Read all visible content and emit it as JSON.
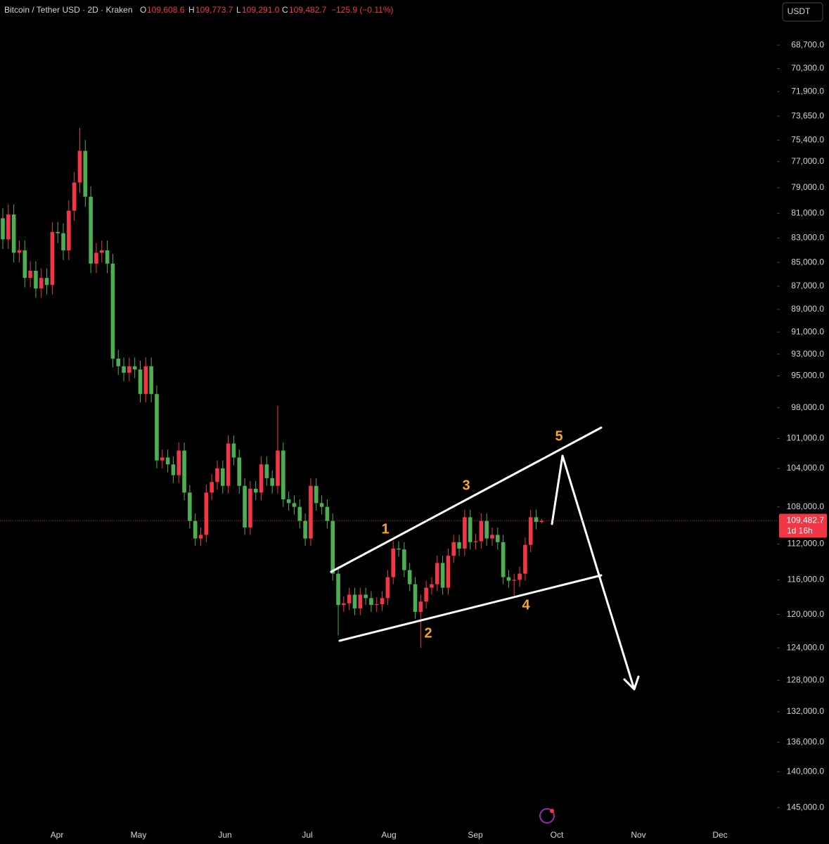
{
  "chart_data": {
    "type": "candlestick",
    "header": {
      "symbol": "Bitcoin / Tether USD · 2D · Kraken",
      "o_label": "O",
      "o": "109,608.6",
      "h_label": "H",
      "h": "109,773.7",
      "l_label": "L",
      "l": "109,291.0",
      "c_label": "C",
      "c": "109,482.7",
      "change": "−125.9 (−0.11%)"
    },
    "currency": "USDT",
    "log_scale": true,
    "inverted": true,
    "up_color": "#4caf50",
    "down_color": "#f23645",
    "ylim": [
      65730,
      147700
    ],
    "yticks": [
      {
        "value": 68700,
        "label": "68,700.0"
      },
      {
        "value": 70300,
        "label": "70,300.0"
      },
      {
        "value": 71900,
        "label": "71,900.0"
      },
      {
        "value": 73650,
        "label": "73,650.0"
      },
      {
        "value": 75400,
        "label": "75,400.0"
      },
      {
        "value": 77000,
        "label": "77,000.0"
      },
      {
        "value": 79000,
        "label": "79,000.0"
      },
      {
        "value": 81000,
        "label": "81,000.0"
      },
      {
        "value": 83000,
        "label": "83,000.0"
      },
      {
        "value": 85000,
        "label": "85,000.0"
      },
      {
        "value": 87000,
        "label": "87,000.0"
      },
      {
        "value": 89000,
        "label": "89,000.0"
      },
      {
        "value": 91000,
        "label": "91,000.0"
      },
      {
        "value": 93000,
        "label": "93,000.0"
      },
      {
        "value": 95000,
        "label": "95,000.0"
      },
      {
        "value": 98000,
        "label": "98,000.0"
      },
      {
        "value": 101000,
        "label": "101,000.0"
      },
      {
        "value": 104000,
        "label": "104,000.0"
      },
      {
        "value": 108000,
        "label": "108,000.0"
      },
      {
        "value": 112000,
        "label": "112,000.0"
      },
      {
        "value": 116000,
        "label": "116,000.0"
      },
      {
        "value": 120000,
        "label": "120,000.0"
      },
      {
        "value": 124000,
        "label": "124,000.0"
      },
      {
        "value": 128000,
        "label": "128,000.0"
      },
      {
        "value": 132000,
        "label": "132,000.0"
      },
      {
        "value": 136000,
        "label": "136,000.0"
      },
      {
        "value": 140000,
        "label": "140,000.0"
      },
      {
        "value": 145000,
        "label": "145,000.0"
      }
    ],
    "months": [
      "Apr",
      "May",
      "Jun",
      "Jul",
      "Aug",
      "Sep",
      "Oct",
      "Nov",
      "Dec"
    ],
    "price_tag": {
      "value": 109482.7,
      "label": "109,482.7",
      "countdown": "1d 16h"
    },
    "waves": [
      "1",
      "2",
      "3",
      "4",
      "5"
    ],
    "open": [
      81400,
      83100,
      81100,
      84200,
      84000,
      86300,
      85700,
      87200,
      86300,
      86900,
      82500,
      82600,
      84000,
      80800,
      78600,
      76200,
      79700,
      85100,
      84200,
      84000,
      85100,
      93400,
      94100,
      94700,
      94100,
      94400,
      96700,
      94100,
      96700,
      103200,
      102900,
      103600,
      104700,
      102200,
      106500,
      109500,
      111400,
      111000,
      106500,
      105400,
      104000,
      105800,
      101500,
      102900,
      105800,
      110200,
      106100,
      106500,
      103600,
      105000,
      105800,
      102200,
      107200,
      107600,
      108000,
      109500,
      111400,
      105800,
      107600,
      108000,
      109500,
      115300,
      118900,
      118700,
      117700,
      119300,
      117700,
      118100,
      118900,
      118800,
      118100,
      115700,
      112500,
      112600,
      114900,
      116500,
      119700,
      118500,
      116900,
      116500,
      114100,
      116900,
      113300,
      111800,
      112500,
      109100,
      111800,
      111700,
      109500,
      111400,
      111000,
      111800,
      115700,
      116100,
      116000,
      115300,
      112100,
      109100,
      109608.6
    ],
    "high": [
      83900,
      83900,
      85000,
      85000,
      87100,
      87100,
      88000,
      88000,
      87700,
      87700,
      83400,
      84800,
      84800,
      81600,
      79400,
      80500,
      85900,
      85900,
      85000,
      85900,
      94200,
      94900,
      95500,
      95500,
      95200,
      97500,
      97500,
      97500,
      104000,
      104000,
      104400,
      105500,
      105500,
      107300,
      110300,
      112200,
      112200,
      111800,
      107300,
      106200,
      106600,
      106600,
      103700,
      106600,
      111000,
      111000,
      107300,
      107300,
      105800,
      106600,
      106600,
      108000,
      108400,
      108800,
      110300,
      112200,
      112200,
      108400,
      108800,
      110300,
      116100,
      122500,
      119700,
      119500,
      120100,
      120100,
      118900,
      119700,
      119700,
      119600,
      118900,
      116500,
      113400,
      115700,
      117300,
      120500,
      124000,
      119300,
      117700,
      117300,
      117700,
      117700,
      114100,
      113300,
      113300,
      112600,
      112600,
      112500,
      112200,
      112200,
      112600,
      116500,
      116900,
      117800,
      116800,
      116100,
      112900,
      110400,
      109773.7
    ],
    "low": [
      80600,
      80300,
      80300,
      83200,
      83200,
      84900,
      84900,
      85500,
      85500,
      81700,
      81700,
      81800,
      80000,
      77800,
      74500,
      75400,
      78900,
      83400,
      83200,
      83200,
      84300,
      92600,
      93300,
      93300,
      93300,
      93600,
      93300,
      93300,
      95900,
      102100,
      102100,
      102800,
      101400,
      101400,
      105700,
      108700,
      110200,
      105700,
      104600,
      103200,
      103200,
      100700,
      100700,
      102100,
      105000,
      105300,
      105300,
      102800,
      102800,
      104200,
      97800,
      101400,
      106400,
      106800,
      107200,
      108700,
      105000,
      105000,
      106800,
      107200,
      108700,
      114500,
      117900,
      116900,
      116900,
      116900,
      116900,
      117300,
      118000,
      117300,
      114900,
      111700,
      111700,
      111800,
      114100,
      115700,
      117700,
      116100,
      115700,
      113300,
      113300,
      112500,
      111000,
      111000,
      108300,
      108300,
      110900,
      108700,
      108700,
      110200,
      110200,
      111000,
      114900,
      115300,
      114500,
      111300,
      108300,
      108300,
      109291
    ],
    "close": [
      83100,
      81100,
      84200,
      84000,
      86300,
      85700,
      87200,
      86300,
      86900,
      82500,
      82600,
      84000,
      80800,
      78600,
      76200,
      79700,
      85100,
      84200,
      84000,
      85100,
      93400,
      94100,
      94700,
      94100,
      94400,
      96700,
      94100,
      96700,
      103200,
      102900,
      103600,
      104700,
      102200,
      106500,
      109500,
      111400,
      111000,
      106500,
      105400,
      104000,
      105800,
      101500,
      102900,
      105800,
      110200,
      106100,
      106500,
      103600,
      105000,
      105800,
      102200,
      107200,
      107600,
      108000,
      109500,
      111400,
      105800,
      107600,
      108000,
      109500,
      115300,
      118900,
      118700,
      117700,
      119300,
      117700,
      118100,
      118900,
      118800,
      118100,
      115700,
      112500,
      112600,
      114900,
      116500,
      119700,
      118500,
      116900,
      116500,
      114100,
      116900,
      113300,
      111800,
      112500,
      109100,
      111800,
      111700,
      109500,
      111400,
      111000,
      111800,
      115700,
      116100,
      116000,
      115300,
      112100,
      109100,
      109600,
      109482.7
    ]
  }
}
